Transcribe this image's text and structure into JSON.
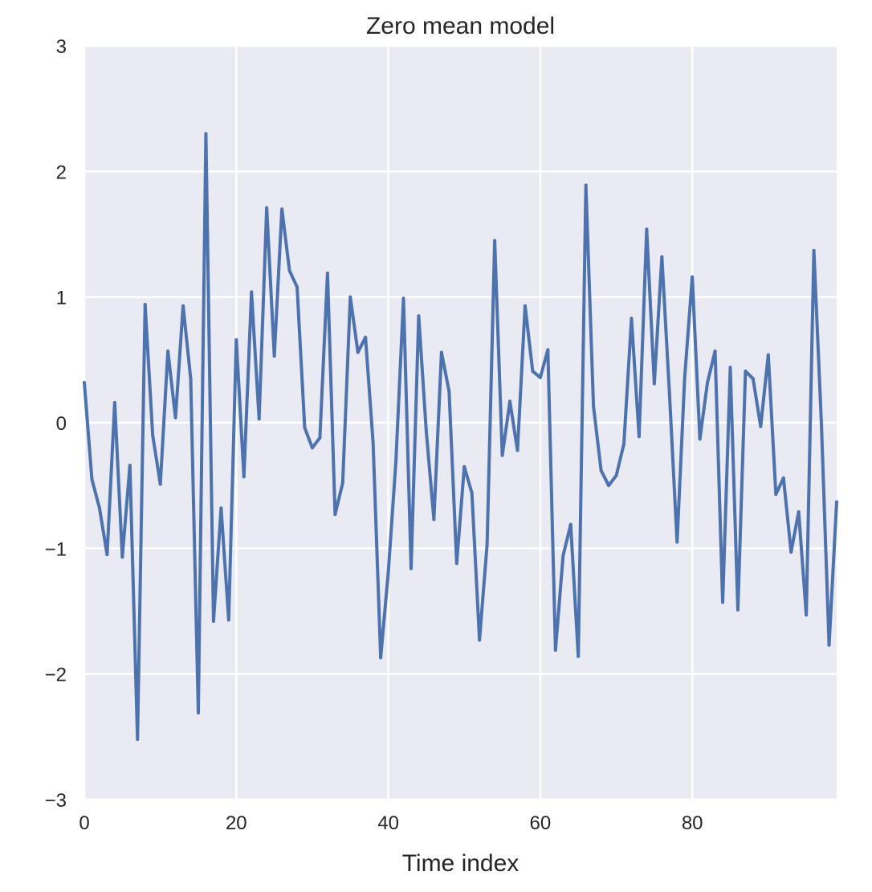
{
  "chart_data": {
    "type": "line",
    "title": "Zero mean model",
    "xlabel": "Time index",
    "ylabel": "",
    "xlim": [
      0,
      99
    ],
    "ylim": [
      -3,
      3
    ],
    "xticks": [
      0,
      20,
      40,
      60,
      80
    ],
    "xtick_labels": [
      "0",
      "20",
      "40",
      "60",
      "80"
    ],
    "yticks": [
      -3,
      -2,
      -1,
      0,
      1,
      2,
      3
    ],
    "ytick_labels": [
      "−3",
      "−2",
      "−1",
      "0",
      "1",
      "2",
      "3"
    ],
    "grid": true,
    "background": "#eaeaf2",
    "line_color": "#4c72b0",
    "series": [
      {
        "x": [
          0,
          1,
          2,
          3,
          4,
          5,
          6,
          7,
          8,
          9,
          10,
          11,
          12,
          13,
          14,
          15,
          16,
          17,
          18,
          19,
          20,
          21,
          22,
          23,
          24,
          25,
          26,
          27,
          28,
          29,
          30,
          31,
          32,
          33,
          34,
          35,
          36,
          37,
          38,
          39,
          40,
          41,
          42,
          43,
          44,
          45,
          46,
          47,
          48,
          49,
          50,
          51,
          52,
          53,
          54,
          55,
          56,
          57,
          58,
          59,
          60,
          61,
          62,
          63,
          64,
          65,
          66,
          67,
          68,
          69,
          70,
          71,
          72,
          73,
          74,
          75,
          76,
          77,
          78,
          79,
          80,
          81,
          82,
          83,
          84,
          85,
          86,
          87,
          88,
          89,
          90,
          91,
          92,
          93,
          94,
          95,
          96,
          97,
          98,
          99
        ],
        "values": [
          0.32,
          -0.45,
          -0.68,
          -1.05,
          0.16,
          -1.07,
          -0.34,
          -2.52,
          0.94,
          -0.1,
          -0.49,
          0.57,
          0.04,
          0.93,
          0.35,
          -2.31,
          2.3,
          -1.58,
          -0.68,
          -1.57,
          0.66,
          -0.43,
          1.04,
          0.03,
          1.71,
          0.53,
          1.7,
          1.21,
          1.08,
          -0.04,
          -0.2,
          -0.12,
          1.19,
          -0.73,
          -0.48,
          1.0,
          0.56,
          0.68,
          -0.16,
          -1.87,
          -1.19,
          -0.31,
          0.99,
          -1.16,
          0.85,
          -0.07,
          -0.77,
          0.56,
          0.25,
          -1.12,
          -0.35,
          -0.56,
          -1.73,
          -0.97,
          1.45,
          -0.26,
          0.17,
          -0.22,
          0.93,
          0.41,
          0.36,
          0.58,
          -1.81,
          -1.06,
          -0.81,
          -1.86,
          1.89,
          0.13,
          -0.38,
          -0.5,
          -0.42,
          -0.17,
          0.83,
          -0.11,
          1.54,
          0.31,
          1.32,
          0.23,
          -0.95,
          0.36,
          1.16,
          -0.13,
          0.32,
          0.57,
          -1.43,
          0.44,
          -1.49,
          0.41,
          0.35,
          -0.03,
          0.54,
          -0.57,
          -0.44,
          -1.03,
          -0.71,
          -1.53,
          1.37,
          -0.02,
          -1.77,
          -0.63
        ]
      }
    ]
  }
}
